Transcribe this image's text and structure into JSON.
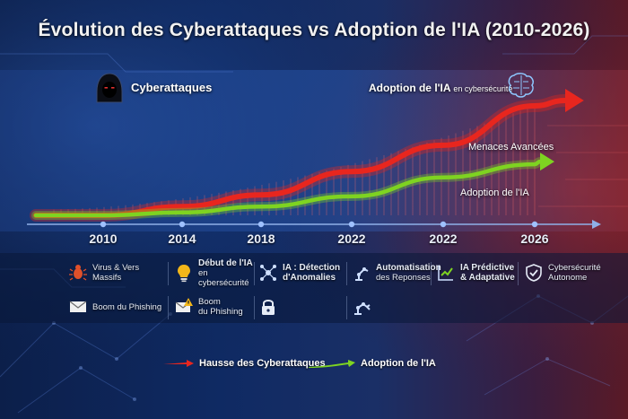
{
  "title": "Évolution des Cyberattaques vs Adoption de l'IA (2010-2026)",
  "labels": {
    "cyber": "Cyberattaques",
    "ai_top": "Adoption de l'IA",
    "ai_top_suffix": "en cybersécurité",
    "threats": "Menaces Avancées",
    "ai_line": "Adoption de l'IA"
  },
  "chart_data": {
    "type": "line",
    "x": [
      "2010",
      "2014",
      "2018",
      "2022",
      "2022",
      "2026"
    ],
    "series": [
      {
        "name": "Hausse des Cyberattaques",
        "values": [
          0,
          6,
          14,
          30,
          48,
          75
        ],
        "color": "#e8261e"
      },
      {
        "name": "Adoption de l'IA",
        "values": [
          0,
          2,
          6,
          13,
          26,
          35
        ],
        "color": "#7ed321"
      }
    ],
    "legend": "bottom-center",
    "grid": false
  },
  "panel": {
    "row1": [
      {
        "icon": "bug-icon",
        "text": "Virus & Vers Massifs"
      },
      {
        "icon": "lightbulb-icon",
        "line1": "Début de l'IA",
        "line2": "en cybersécurité"
      },
      {
        "icon": "network-icon",
        "line1": "IA : Détection",
        "line2": "d'Anomalies"
      },
      {
        "icon": "robot-arm-icon",
        "line1": "Automatisation",
        "line2": "des Reponses"
      },
      {
        "icon": "chart-check-icon",
        "line1": "IA Prédictive",
        "line2": "& Adaptative"
      },
      {
        "icon": "shield-check-icon",
        "line1": "Cybersécurité",
        "line2": "Autonome"
      }
    ],
    "row2": [
      {
        "icon": "envelope-icon",
        "text": "Boom du Phishing"
      },
      {
        "icon": "envelope-alert-icon",
        "line1": "Boom",
        "line2": "du Phishing"
      },
      {
        "icon": "lock-icon"
      },
      {
        "icon": "robot-arm-icon"
      }
    ]
  }
}
